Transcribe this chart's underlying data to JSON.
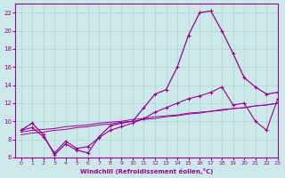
{
  "x": [
    0,
    1,
    2,
    3,
    4,
    5,
    6,
    7,
    8,
    9,
    10,
    11,
    12,
    13,
    14,
    15,
    16,
    17,
    18,
    19,
    20,
    21,
    22,
    23
  ],
  "main_line": [
    9.0,
    9.8,
    8.5,
    6.3,
    7.5,
    6.8,
    6.5,
    8.3,
    9.5,
    9.8,
    10.0,
    11.5,
    13.0,
    13.5,
    16.0,
    19.5,
    22.0,
    22.2,
    20.0,
    17.5,
    14.8,
    13.8,
    13.0,
    13.2
  ],
  "line_markers": [
    9.0,
    9.3,
    8.3,
    6.5,
    7.8,
    7.0,
    7.2,
    8.2,
    9.0,
    9.4,
    9.8,
    10.3,
    11.0,
    11.5,
    12.0,
    12.5,
    12.8,
    13.2,
    13.8,
    11.8,
    12.0,
    10.0,
    9.0,
    12.5
  ],
  "line_straight1": [
    8.8,
    9.0,
    9.1,
    9.2,
    9.4,
    9.5,
    9.6,
    9.8,
    9.9,
    10.0,
    10.2,
    10.3,
    10.5,
    10.6,
    10.7,
    10.9,
    11.0,
    11.1,
    11.3,
    11.4,
    11.5,
    11.7,
    11.8,
    12.0
  ],
  "line_straight2": [
    8.5,
    8.7,
    8.8,
    9.0,
    9.1,
    9.3,
    9.4,
    9.6,
    9.7,
    9.9,
    10.0,
    10.2,
    10.3,
    10.5,
    10.6,
    10.8,
    10.9,
    11.1,
    11.2,
    11.4,
    11.5,
    11.7,
    11.8,
    12.0
  ],
  "line_color": "#990099",
  "bg_color": "#cce8e8",
  "grid_color": "#aad4d4",
  "xlabel": "Windchill (Refroidissement éolien,°C)",
  "xlim": [
    -0.5,
    23
  ],
  "ylim": [
    6,
    23
  ],
  "yticks": [
    6,
    8,
    10,
    12,
    14,
    16,
    18,
    20,
    22
  ],
  "xticks": [
    0,
    1,
    2,
    3,
    4,
    5,
    6,
    7,
    8,
    9,
    10,
    11,
    12,
    13,
    14,
    15,
    16,
    17,
    18,
    19,
    20,
    21,
    22,
    23
  ]
}
